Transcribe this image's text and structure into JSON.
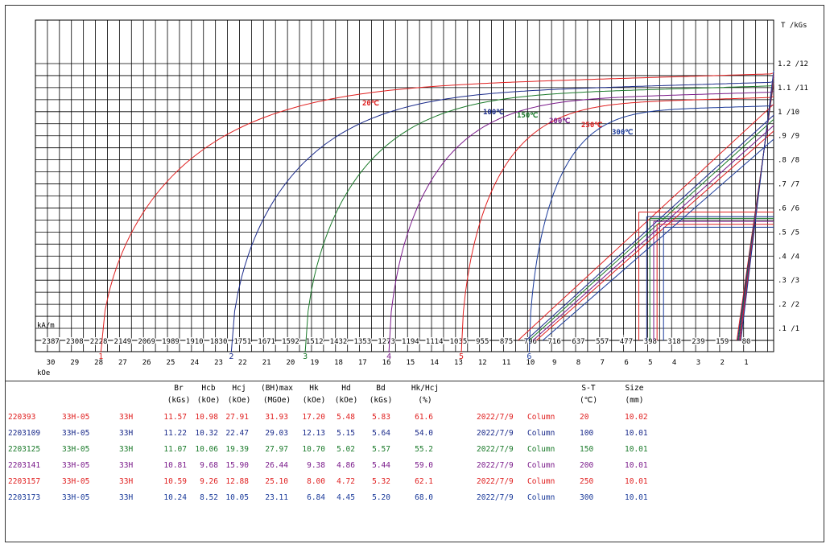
{
  "chart_data": {
    "type": "line",
    "title": "",
    "xlabel_kam": "kA/m",
    "xlabel_koe": "kOe",
    "ylabel": "T /kGs",
    "x_kam_ticks": [
      2387,
      2308,
      2228,
      2149,
      2069,
      1989,
      1910,
      1830,
      1751,
      1671,
      1592,
      1512,
      1432,
      1353,
      1273,
      1194,
      1114,
      1035,
      955,
      875,
      796,
      716,
      637,
      557,
      477,
      398,
      318,
      239,
      159,
      80
    ],
    "x_koe_ticks": [
      30,
      29,
      28,
      27,
      26,
      25,
      24,
      23,
      22,
      21,
      20,
      19,
      18,
      17,
      16,
      15,
      14,
      13,
      12,
      11,
      10,
      9,
      8,
      7,
      6,
      5,
      4,
      3,
      2,
      1
    ],
    "y_ticks": [
      "1.2 /12",
      "1.1 /11",
      "1 /10",
      ".9 /9",
      ".8 /8",
      ".7 /7",
      ".6 /6",
      ".5 /5",
      ".4 /4",
      ".3 /3",
      ".2 /2",
      ".1 /1"
    ],
    "xlim_koe": [
      30.5,
      0
    ],
    "ylim_tesla": [
      0,
      1.24
    ],
    "grid": true,
    "series": [
      {
        "name": "20℃",
        "marker": "1",
        "color": "#e02020",
        "Br": 11.57,
        "Hcj": 27.91,
        "Hcb": 10.98,
        "Hd": 5.48,
        "Bd": 5.83
      },
      {
        "name": "100℃",
        "marker": "2",
        "color": "#1a2a8a",
        "Br": 11.22,
        "Hcj": 22.47,
        "Hcb": 10.32,
        "Hd": 5.15,
        "Bd": 5.64
      },
      {
        "name": "150℃",
        "marker": "3",
        "color": "#1a7a2a",
        "Br": 11.07,
        "Hcj": 19.39,
        "Hcb": 10.06,
        "Hd": 5.02,
        "Bd": 5.57
      },
      {
        "name": "200℃",
        "marker": "4",
        "color": "#7a1a8a",
        "Br": 10.81,
        "Hcj": 15.9,
        "Hcb": 9.68,
        "Hd": 4.86,
        "Bd": 5.44
      },
      {
        "name": "250℃",
        "marker": "5",
        "color": "#e02020",
        "Br": 10.59,
        "Hcj": 12.88,
        "Hcb": 9.26,
        "Hd": 4.72,
        "Bd": 5.32
      },
      {
        "name": "300℃",
        "marker": "6",
        "color": "#1a3a9a",
        "Br": 10.24,
        "Hcj": 10.05,
        "Hcb": 8.52,
        "Hd": 4.45,
        "Bd": 5.2
      }
    ]
  },
  "table": {
    "headers": [
      {
        "l1": "Br",
        "l2": "(kGs)"
      },
      {
        "l1": "Hcb",
        "l2": "(kOe)"
      },
      {
        "l1": "Hcj",
        "l2": "(kOe)"
      },
      {
        "l1": "(BH)max",
        "l2": "(MGOe)"
      },
      {
        "l1": "Hk",
        "l2": "(kOe)"
      },
      {
        "l1": "Hd",
        "l2": "(kOe)"
      },
      {
        "l1": "Bd",
        "l2": "(kGs)"
      },
      {
        "l1": "Hk/Hcj",
        "l2": "(%)"
      },
      {
        "l1": "S-T",
        "l2": "(℃)"
      },
      {
        "l1": "Size",
        "l2": "(mm)"
      }
    ],
    "rows": [
      {
        "color": "#e02020",
        "id": "220393",
        "grade": "33H-05",
        "type": "33H",
        "Br": "11.57",
        "Hcb": "10.98",
        "Hcj": "27.91",
        "BHmax": "31.93",
        "Hk": "17.20",
        "Hd": "5.48",
        "Bd": "5.83",
        "HkHcj": "61.6",
        "date": "2022/7/9",
        "shape": "Column",
        "temp": "20",
        "size": "10.02"
      },
      {
        "color": "#1a2a8a",
        "id": "2203109",
        "grade": "33H-05",
        "type": "33H",
        "Br": "11.22",
        "Hcb": "10.32",
        "Hcj": "22.47",
        "BHmax": "29.03",
        "Hk": "12.13",
        "Hd": "5.15",
        "Bd": "5.64",
        "HkHcj": "54.0",
        "date": "2022/7/9",
        "shape": "Column",
        "temp": "100",
        "size": "10.01"
      },
      {
        "color": "#1a7a2a",
        "id": "2203125",
        "grade": "33H-05",
        "type": "33H",
        "Br": "11.07",
        "Hcb": "10.06",
        "Hcj": "19.39",
        "BHmax": "27.97",
        "Hk": "10.70",
        "Hd": "5.02",
        "Bd": "5.57",
        "HkHcj": "55.2",
        "date": "2022/7/9",
        "shape": "Column",
        "temp": "150",
        "size": "10.01"
      },
      {
        "color": "#7a1a8a",
        "id": "2203141",
        "grade": "33H-05",
        "type": "33H",
        "Br": "10.81",
        "Hcb": "9.68",
        "Hcj": "15.90",
        "BHmax": "26.44",
        "Hk": "9.38",
        "Hd": "4.86",
        "Bd": "5.44",
        "HkHcj": "59.0",
        "date": "2022/7/9",
        "shape": "Column",
        "temp": "200",
        "size": "10.01"
      },
      {
        "color": "#e02020",
        "id": "2203157",
        "grade": "33H-05",
        "type": "33H",
        "Br": "10.59",
        "Hcb": "9.26",
        "Hcj": "12.88",
        "BHmax": "25.10",
        "Hk": "8.00",
        "Hd": "4.72",
        "Bd": "5.32",
        "HkHcj": "62.1",
        "date": "2022/7/9",
        "shape": "Column",
        "temp": "250",
        "size": "10.01"
      },
      {
        "color": "#1a3a9a",
        "id": "2203173",
        "grade": "33H-05",
        "type": "33H",
        "Br": "10.24",
        "Hcb": "8.52",
        "Hcj": "10.05",
        "BHmax": "23.11",
        "Hk": "6.84",
        "Hd": "4.45",
        "Bd": "5.20",
        "HkHcj": "68.0",
        "date": "2022/7/9",
        "shape": "Column",
        "temp": "300",
        "size": "10.01"
      }
    ]
  }
}
